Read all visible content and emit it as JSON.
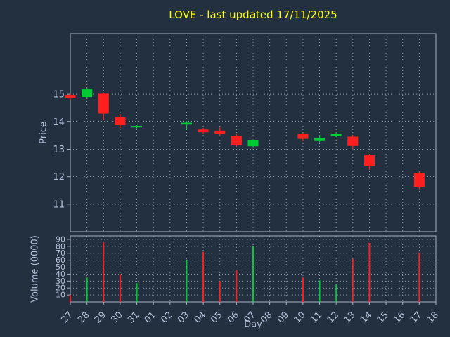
{
  "colors": {
    "background": "#22303f",
    "grid": "#8a97a8",
    "frame": "#a8b2c0",
    "text": "#b8c2dc",
    "title": "#ffff00",
    "up": "#00cc33",
    "down": "#ff1f1f"
  },
  "chart_data": {
    "type": "candlestick",
    "title": "LOVE - last updated 17/11/2025",
    "xlabel": "Day",
    "price_axis": {
      "label": "Price",
      "ticks": [
        15,
        14,
        13,
        12,
        11
      ],
      "range": [
        10.0,
        17.2
      ]
    },
    "volume_axis": {
      "label": "Volume (0000)",
      "ticks": [
        90,
        80,
        70,
        60,
        50,
        40,
        30,
        20,
        10
      ],
      "range": [
        0,
        95
      ]
    },
    "x_categories": [
      "27",
      "28",
      "29",
      "30",
      "31",
      "01",
      "02",
      "03",
      "04",
      "05",
      "06",
      "07",
      "08",
      "09",
      "10",
      "11",
      "12",
      "13",
      "14",
      "15",
      "16",
      "17",
      "18"
    ],
    "candles": [
      {
        "day": "27",
        "open": 14.95,
        "high": 15.02,
        "low": 14.8,
        "close": 14.85,
        "color": "red",
        "volume": 10
      },
      {
        "day": "28",
        "open": 14.9,
        "high": 15.22,
        "low": 14.85,
        "close": 15.18,
        "color": "green",
        "volume": 35
      },
      {
        "day": "29",
        "open": 15.02,
        "high": 15.06,
        "low": 14.05,
        "close": 14.3,
        "color": "red",
        "volume": 86
      },
      {
        "day": "30",
        "open": 14.17,
        "high": 14.26,
        "low": 13.75,
        "close": 13.88,
        "color": "red",
        "volume": 40
      },
      {
        "day": "31",
        "open": 13.8,
        "high": 13.88,
        "low": 13.74,
        "close": 13.85,
        "color": "green",
        "volume": 27
      },
      {
        "day": "03",
        "open": 13.9,
        "high": 14.02,
        "low": 13.7,
        "close": 13.97,
        "color": "green",
        "volume": 60
      },
      {
        "day": "04",
        "open": 13.72,
        "high": 13.77,
        "low": 13.55,
        "close": 13.62,
        "color": "red",
        "volume": 72
      },
      {
        "day": "05",
        "open": 13.68,
        "high": 13.8,
        "low": 13.5,
        "close": 13.55,
        "color": "red",
        "volume": 30
      },
      {
        "day": "06",
        "open": 13.49,
        "high": 13.55,
        "low": 13.1,
        "close": 13.16,
        "color": "red",
        "volume": 46
      },
      {
        "day": "07",
        "open": 13.11,
        "high": 13.36,
        "low": 13.05,
        "close": 13.33,
        "color": "green",
        "volume": 80
      },
      {
        "day": "10",
        "open": 13.55,
        "high": 13.6,
        "low": 13.3,
        "close": 13.38,
        "color": "red",
        "volume": 35
      },
      {
        "day": "11",
        "open": 13.3,
        "high": 13.52,
        "low": 13.26,
        "close": 13.42,
        "color": "green",
        "volume": 31
      },
      {
        "day": "12",
        "open": 13.48,
        "high": 13.6,
        "low": 13.44,
        "close": 13.55,
        "color": "green",
        "volume": 25
      },
      {
        "day": "13",
        "open": 13.46,
        "high": 13.52,
        "low": 13.02,
        "close": 13.12,
        "color": "red",
        "volume": 62
      },
      {
        "day": "14",
        "open": 12.78,
        "high": 12.82,
        "low": 12.25,
        "close": 12.38,
        "color": "red",
        "volume": 85
      },
      {
        "day": "17",
        "open": 12.14,
        "high": 12.18,
        "low": 11.55,
        "close": 11.63,
        "color": "red",
        "volume": 71
      }
    ]
  }
}
